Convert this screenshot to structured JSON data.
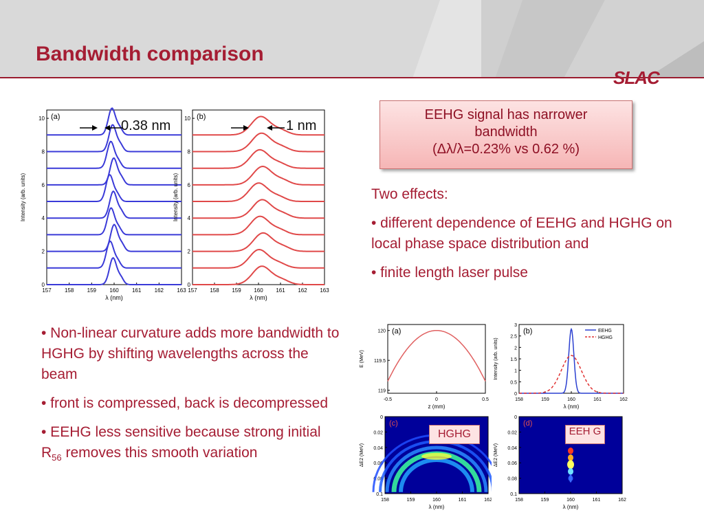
{
  "slide": {
    "title": "Bandwidth comparison",
    "logo": "SLAC"
  },
  "callout": {
    "line1": "EEHG signal has narrower",
    "line2": "bandwidth",
    "line3": "(Δλ/λ=0.23% vs 0.62 %)"
  },
  "right_text": {
    "heading": "Two effects:",
    "bullet1": "• different dependence of EEHG and HGHG on local phase space distribution and",
    "bullet2": "• finite length laser pulse"
  },
  "left_text": {
    "bullet1": "• Non-linear curvature adds more bandwidth to HGHG by shifting wavelengths across the beam",
    "bullet2": "• front is compressed, back is decompressed",
    "bullet3_pre": "• EEHG less sensitive because strong initial R",
    "bullet3_sub": "56",
    "bullet3_post": " removes this smooth variation"
  },
  "annotations": {
    "width_a": "0.38 nm",
    "width_b": "1 nm",
    "tag_c": "HGHG",
    "tag_d": "EEH G"
  },
  "colors": {
    "accent": "#a51d33",
    "eehg_line": "#3a3ad8",
    "hghg_line": "#e04848",
    "curve": "#e06060"
  },
  "chart_data": [
    {
      "type": "line",
      "panel": "(a)",
      "xlabel": "λ (nm)",
      "ylabel": "Intensity (arb. units)",
      "xlim": [
        157,
        163
      ],
      "ylim": [
        0,
        10.5
      ],
      "xticks": [
        "157",
        "158",
        "159",
        "160",
        "161",
        "162",
        "163"
      ],
      "yticks": [
        "0",
        "2",
        "4",
        "6",
        "8",
        "10"
      ],
      "center": 159.9,
      "fwhm": 0.38,
      "offsets": [
        0,
        1,
        2,
        3,
        4,
        5,
        6,
        7,
        8,
        9
      ],
      "peak_height": 1.6
    },
    {
      "type": "line",
      "panel": "(b)",
      "xlabel": "λ (nm)",
      "ylabel": "Intensity (arb. units)",
      "xlim": [
        157,
        163
      ],
      "ylim": [
        0,
        10.5
      ],
      "xticks": [
        "157",
        "158",
        "159",
        "160",
        "161",
        "162",
        "163"
      ],
      "yticks": [
        "0",
        "2",
        "4",
        "6",
        "8",
        "10"
      ],
      "center": 160.1,
      "fwhm": 1.0,
      "offsets": [
        0,
        1,
        2,
        3,
        4,
        5,
        6,
        7,
        8,
        9
      ],
      "peak_height": 1.1
    },
    {
      "type": "line",
      "panel": "(a)",
      "xlabel": "z (mm)",
      "ylabel": "E (MeV)",
      "xlim": [
        -0.5,
        0.5
      ],
      "ylim": [
        118.95,
        120.1
      ],
      "xticks": [
        "-0.5",
        "0",
        "0.5"
      ],
      "yticks": [
        "119",
        "119.5",
        "120"
      ],
      "peak": 120.0,
      "edge": 119.15
    },
    {
      "type": "line",
      "panel": "(b)",
      "xlabel": "λ (nm)",
      "ylabel": "Intensity (arb. units)",
      "xlim": [
        158,
        162
      ],
      "ylim": [
        0,
        3
      ],
      "xticks": [
        "158",
        "159",
        "160",
        "161",
        "162"
      ],
      "yticks": [
        "0",
        "0.5",
        "1",
        "1.5",
        "2",
        "2.5",
        "3"
      ],
      "series": [
        {
          "name": "EEHG",
          "center": 160.0,
          "fwhm": 0.23,
          "peak": 2.8
        },
        {
          "name": "HGHG",
          "center": 160.0,
          "fwhm": 0.9,
          "peak": 1.65
        }
      ]
    },
    {
      "type": "heatmap",
      "panel": "(c)",
      "xlabel": "λ (nm)",
      "ylabel": "ΔE2 (MeV)",
      "xlim": [
        158,
        162
      ],
      "ylim": [
        0,
        0.1
      ],
      "xticks": [
        "158",
        "159",
        "160",
        "161",
        "162"
      ],
      "yticks": [
        "0",
        "0.02",
        "0.04",
        "0.06",
        "0.08",
        "0.1"
      ]
    },
    {
      "type": "heatmap",
      "panel": "(d)",
      "xlabel": "λ (nm)",
      "ylabel": "ΔE2 (MeV)",
      "xlim": [
        158,
        162
      ],
      "ylim": [
        0,
        0.1
      ],
      "xticks": [
        "158",
        "159",
        "160",
        "161",
        "162"
      ],
      "yticks": [
        "0",
        "0.02",
        "0.04",
        "0.06",
        "0.08",
        "0.1"
      ]
    }
  ]
}
